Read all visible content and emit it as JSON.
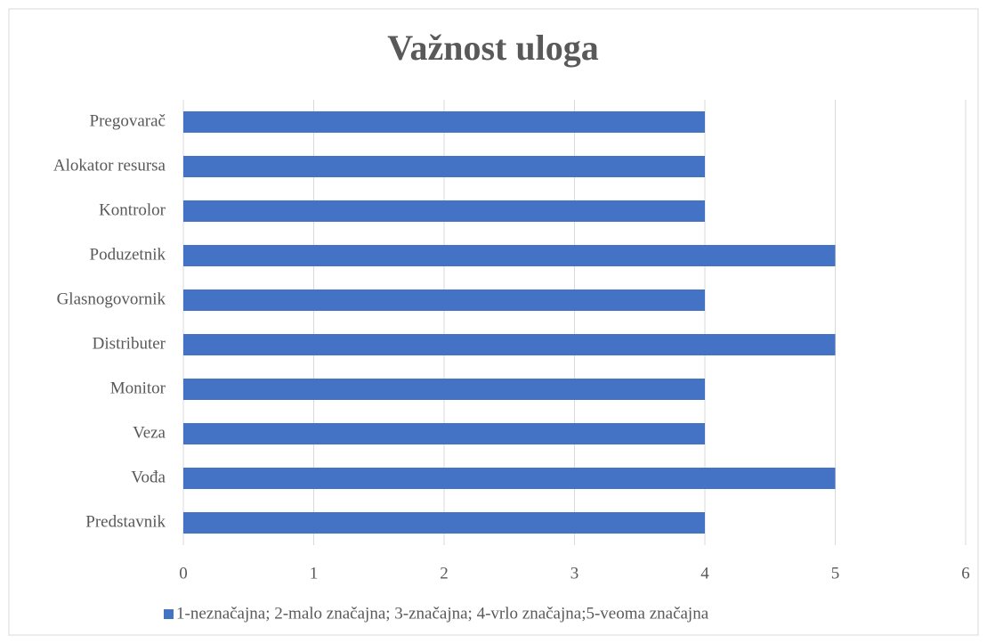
{
  "chart_data": {
    "type": "bar",
    "orientation": "horizontal",
    "title": "Važnost uloga",
    "categories": [
      "Predstavnik",
      "Vođa",
      "Veza",
      "Monitor",
      "Distributer",
      "Glasnogovornik",
      "Poduzetnik",
      "Kontrolor",
      "Alokator resursa",
      "Pregovarač"
    ],
    "series": [
      {
        "name": "1-neznačajna; 2-malo značajna; 3-značajna; 4-vrlo značajna;5-veoma značajna",
        "color": "#4472c4",
        "values": [
          4,
          5,
          4,
          4,
          5,
          4,
          5,
          4,
          4,
          4
        ]
      }
    ],
    "xlim": [
      0,
      6
    ],
    "xticks": [
      0,
      1,
      2,
      3,
      4,
      5,
      6
    ],
    "grid": true,
    "legend": "bottom"
  }
}
